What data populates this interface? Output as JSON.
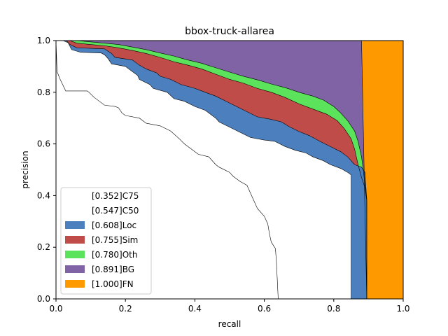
{
  "chart_data": {
    "type": "area",
    "title": "bbox-truck-allarea",
    "xlabel": "recall",
    "ylabel": "precision",
    "xlim": [
      0,
      1
    ],
    "ylim": [
      0,
      1
    ],
    "xticks": [
      "0.0",
      "0.2",
      "0.4",
      "0.6",
      "0.8",
      "1.0"
    ],
    "yticks": [
      "0.0",
      "0.2",
      "0.4",
      "0.6",
      "0.8",
      "1.0"
    ],
    "legend_position": "lower-left",
    "grid": false,
    "series": [
      {
        "name": "[0.352]C75",
        "color": "#ffffff",
        "points": [
          [
            0,
            1.0
          ],
          [
            0.003,
            0.88
          ],
          [
            0.012,
            0.85
          ],
          [
            0.028,
            0.805
          ],
          [
            0.09,
            0.805
          ],
          [
            0.095,
            0.8
          ],
          [
            0.11,
            0.78
          ],
          [
            0.13,
            0.76
          ],
          [
            0.14,
            0.75
          ],
          [
            0.17,
            0.745
          ],
          [
            0.18,
            0.74
          ],
          [
            0.19,
            0.72
          ],
          [
            0.2,
            0.71
          ],
          [
            0.24,
            0.7
          ],
          [
            0.26,
            0.68
          ],
          [
            0.3,
            0.67
          ],
          [
            0.33,
            0.65
          ],
          [
            0.355,
            0.62
          ],
          [
            0.37,
            0.6
          ],
          [
            0.39,
            0.58
          ],
          [
            0.41,
            0.56
          ],
          [
            0.44,
            0.55
          ],
          [
            0.46,
            0.52
          ],
          [
            0.47,
            0.51
          ],
          [
            0.5,
            0.49
          ],
          [
            0.51,
            0.475
          ],
          [
            0.53,
            0.455
          ],
          [
            0.55,
            0.44
          ],
          [
            0.56,
            0.41
          ],
          [
            0.57,
            0.38
          ],
          [
            0.58,
            0.35
          ],
          [
            0.6,
            0.32
          ],
          [
            0.61,
            0.29
          ],
          [
            0.615,
            0.25
          ],
          [
            0.62,
            0.22
          ],
          [
            0.632,
            0.195
          ],
          [
            0.635,
            0.14
          ],
          [
            0.64,
            0.0
          ]
        ]
      },
      {
        "name": "[0.547]C50",
        "color": "#ffffff",
        "points": [
          [
            0,
            1.0
          ],
          [
            0.005,
            1.0
          ],
          [
            0.012,
            1.0
          ],
          [
            0.02,
            1.0
          ],
          [
            0.035,
            0.992
          ],
          [
            0.04,
            0.978
          ],
          [
            0.045,
            0.965
          ],
          [
            0.07,
            0.955
          ],
          [
            0.13,
            0.952
          ],
          [
            0.14,
            0.945
          ],
          [
            0.15,
            0.93
          ],
          [
            0.16,
            0.91
          ],
          [
            0.2,
            0.9
          ],
          [
            0.22,
            0.88
          ],
          [
            0.235,
            0.865
          ],
          [
            0.24,
            0.85
          ],
          [
            0.27,
            0.83
          ],
          [
            0.28,
            0.815
          ],
          [
            0.32,
            0.8
          ],
          [
            0.34,
            0.775
          ],
          [
            0.37,
            0.765
          ],
          [
            0.4,
            0.745
          ],
          [
            0.43,
            0.73
          ],
          [
            0.46,
            0.7
          ],
          [
            0.47,
            0.685
          ],
          [
            0.5,
            0.665
          ],
          [
            0.53,
            0.645
          ],
          [
            0.56,
            0.625
          ],
          [
            0.6,
            0.615
          ],
          [
            0.63,
            0.61
          ],
          [
            0.66,
            0.59
          ],
          [
            0.69,
            0.575
          ],
          [
            0.72,
            0.565
          ],
          [
            0.74,
            0.55
          ],
          [
            0.77,
            0.535
          ],
          [
            0.79,
            0.52
          ],
          [
            0.82,
            0.505
          ],
          [
            0.84,
            0.49
          ],
          [
            0.85,
            0.48
          ],
          [
            0.85,
            0.35
          ],
          [
            0.85,
            0.0
          ]
        ]
      },
      {
        "name": "[0.608]Loc",
        "color": "#4c7fbe",
        "points": [
          [
            0,
            1.0
          ],
          [
            0.005,
            1.0
          ],
          [
            0.012,
            1.0
          ],
          [
            0.02,
            1.0
          ],
          [
            0.03,
            1.0
          ],
          [
            0.04,
            0.985
          ],
          [
            0.06,
            0.972
          ],
          [
            0.14,
            0.968
          ],
          [
            0.16,
            0.95
          ],
          [
            0.17,
            0.935
          ],
          [
            0.22,
            0.925
          ],
          [
            0.24,
            0.905
          ],
          [
            0.26,
            0.89
          ],
          [
            0.29,
            0.875
          ],
          [
            0.3,
            0.862
          ],
          [
            0.33,
            0.85
          ],
          [
            0.36,
            0.83
          ],
          [
            0.4,
            0.815
          ],
          [
            0.43,
            0.8
          ],
          [
            0.46,
            0.785
          ],
          [
            0.49,
            0.765
          ],
          [
            0.52,
            0.745
          ],
          [
            0.55,
            0.725
          ],
          [
            0.58,
            0.705
          ],
          [
            0.62,
            0.695
          ],
          [
            0.65,
            0.685
          ],
          [
            0.67,
            0.668
          ],
          [
            0.7,
            0.648
          ],
          [
            0.73,
            0.632
          ],
          [
            0.76,
            0.61
          ],
          [
            0.79,
            0.59
          ],
          [
            0.82,
            0.57
          ],
          [
            0.84,
            0.55
          ],
          [
            0.85,
            0.535
          ],
          [
            0.86,
            0.52
          ],
          [
            0.88,
            0.51
          ],
          [
            0.89,
            0.49
          ],
          [
            0.895,
            0.38
          ],
          [
            0.895,
            0.0
          ]
        ]
      },
      {
        "name": "[0.755]Sim",
        "color": "#c04c49",
        "points": [
          [
            0,
            1.0
          ],
          [
            0.005,
            1.0
          ],
          [
            0.012,
            1.0
          ],
          [
            0.02,
            1.0
          ],
          [
            0.03,
            1.0
          ],
          [
            0.04,
            1.0
          ],
          [
            0.06,
            0.99
          ],
          [
            0.1,
            0.985
          ],
          [
            0.14,
            0.98
          ],
          [
            0.18,
            0.972
          ],
          [
            0.22,
            0.962
          ],
          [
            0.26,
            0.95
          ],
          [
            0.3,
            0.935
          ],
          [
            0.34,
            0.918
          ],
          [
            0.38,
            0.905
          ],
          [
            0.42,
            0.89
          ],
          [
            0.46,
            0.87
          ],
          [
            0.5,
            0.85
          ],
          [
            0.54,
            0.835
          ],
          [
            0.58,
            0.815
          ],
          [
            0.62,
            0.8
          ],
          [
            0.66,
            0.78
          ],
          [
            0.7,
            0.755
          ],
          [
            0.74,
            0.735
          ],
          [
            0.78,
            0.715
          ],
          [
            0.81,
            0.69
          ],
          [
            0.83,
            0.66
          ],
          [
            0.85,
            0.62
          ],
          [
            0.86,
            0.58
          ],
          [
            0.87,
            0.52
          ],
          [
            0.88,
            0.47
          ],
          [
            0.89,
            0.43
          ],
          [
            0.895,
            0.38
          ],
          [
            0.895,
            0.0
          ]
        ]
      },
      {
        "name": "[0.780]Oth",
        "color": "#5ce35c",
        "points": [
          [
            0,
            1.0
          ],
          [
            0.005,
            1.0
          ],
          [
            0.012,
            1.0
          ],
          [
            0.02,
            1.0
          ],
          [
            0.03,
            1.0
          ],
          [
            0.04,
            1.0
          ],
          [
            0.06,
            1.0
          ],
          [
            0.1,
            0.995
          ],
          [
            0.14,
            0.99
          ],
          [
            0.18,
            0.985
          ],
          [
            0.22,
            0.975
          ],
          [
            0.26,
            0.965
          ],
          [
            0.3,
            0.952
          ],
          [
            0.34,
            0.94
          ],
          [
            0.38,
            0.925
          ],
          [
            0.42,
            0.912
          ],
          [
            0.46,
            0.895
          ],
          [
            0.5,
            0.878
          ],
          [
            0.54,
            0.862
          ],
          [
            0.58,
            0.848
          ],
          [
            0.62,
            0.832
          ],
          [
            0.66,
            0.818
          ],
          [
            0.7,
            0.8
          ],
          [
            0.74,
            0.785
          ],
          [
            0.77,
            0.77
          ],
          [
            0.8,
            0.745
          ],
          [
            0.82,
            0.72
          ],
          [
            0.84,
            0.69
          ],
          [
            0.86,
            0.65
          ],
          [
            0.87,
            0.61
          ],
          [
            0.88,
            0.55
          ],
          [
            0.885,
            0.5
          ],
          [
            0.89,
            0.44
          ],
          [
            0.895,
            0.39
          ],
          [
            0.895,
            0.0
          ]
        ]
      },
      {
        "name": "[0.891]BG",
        "color": "#8063a4",
        "points": [
          [
            0,
            1.0
          ],
          [
            0.88,
            1.0
          ],
          [
            0.895,
            0.0
          ]
        ]
      },
      {
        "name": "[1.000]FN",
        "color": "#ff9900",
        "points": [
          [
            0,
            1.0
          ],
          [
            0.89,
            1.0
          ],
          [
            0.895,
            1.0
          ],
          [
            1.0,
            1.0
          ],
          [
            1.0,
            0.0
          ],
          [
            0.9,
            0.0
          ]
        ]
      }
    ]
  }
}
